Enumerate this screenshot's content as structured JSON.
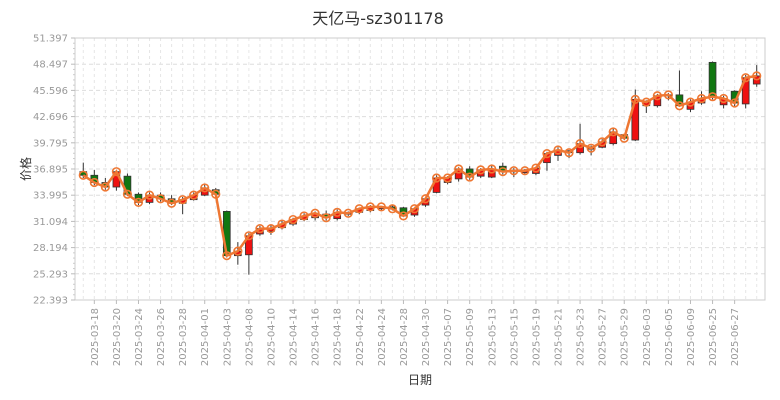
{
  "chart_data": {
    "type": "candlestick",
    "title": "天亿马-sz301178",
    "xlabel": "日期",
    "ylabel": "价格",
    "ylim": [
      22.393,
      51.397
    ],
    "y_ticks": [
      "51.397",
      "48.497",
      "45.596",
      "42.696",
      "39.795",
      "36.895",
      "33.995",
      "31.094",
      "28.194",
      "25.293",
      "22.393"
    ],
    "x_tick_labels": [
      "2025-03-18",
      "2025-03-20",
      "2025-03-24",
      "2025-03-26",
      "2025-03-28",
      "2025-04-01",
      "2025-04-03",
      "2025-04-08",
      "2025-04-10",
      "2025-04-14",
      "2025-04-16",
      "2025-04-18",
      "2025-04-22",
      "2025-04-24",
      "2025-04-28",
      "2025-04-30",
      "2025-05-07",
      "2025-05-09",
      "2025-05-13",
      "2025-05-15",
      "2025-05-19",
      "2025-05-21",
      "2025-05-23",
      "2025-05-27",
      "2025-05-29",
      "2025-06-03",
      "2025-06-05",
      "2025-06-09",
      "2025-06-25",
      "2025-06-27"
    ],
    "grid": true,
    "colors": {
      "up": "#ee1111",
      "down": "#117711",
      "close_line": "#ee7733"
    },
    "series": [
      {
        "values": [
          [
            36.6,
            36.2,
            35.9,
            37.6
          ],
          [
            36.2,
            35.4,
            35.1,
            36.8
          ],
          [
            35.4,
            34.9,
            34.6,
            35.9
          ],
          [
            34.9,
            36.6,
            34.5,
            36.8
          ],
          [
            36.1,
            34.1,
            33.9,
            36.4
          ],
          [
            34.1,
            33.2,
            32.9,
            34.3
          ],
          [
            33.2,
            34.0,
            33.0,
            34.3
          ],
          [
            34.0,
            33.6,
            33.3,
            34.3
          ],
          [
            33.6,
            33.1,
            32.9,
            34.0
          ],
          [
            33.1,
            33.5,
            31.9,
            33.8
          ],
          [
            33.5,
            34.0,
            33.4,
            34.3
          ],
          [
            34.0,
            34.8,
            33.9,
            35.2
          ],
          [
            34.6,
            34.1,
            33.8,
            34.8
          ],
          [
            32.2,
            27.3,
            27.1,
            32.3
          ],
          [
            27.3,
            27.8,
            26.3,
            28.8
          ],
          [
            27.4,
            29.5,
            25.2,
            29.8
          ],
          [
            29.7,
            30.3,
            29.5,
            30.6
          ],
          [
            30.0,
            30.3,
            29.6,
            30.7
          ],
          [
            30.4,
            30.8,
            30.2,
            31.2
          ],
          [
            30.8,
            31.3,
            30.6,
            31.5
          ],
          [
            31.3,
            31.7,
            31.1,
            32.0
          ],
          [
            31.5,
            32.0,
            31.2,
            32.2
          ],
          [
            31.9,
            31.5,
            31.2,
            32.3
          ],
          [
            31.4,
            32.1,
            31.2,
            32.4
          ],
          [
            31.9,
            32.0,
            31.7,
            32.2
          ],
          [
            32.1,
            32.5,
            31.9,
            32.6
          ],
          [
            32.3,
            32.7,
            32.1,
            32.9
          ],
          [
            32.5,
            32.7,
            32.3,
            32.8
          ],
          [
            32.7,
            32.5,
            32.3,
            32.9
          ],
          [
            32.6,
            31.7,
            31.6,
            32.7
          ],
          [
            31.8,
            32.5,
            31.6,
            32.6
          ],
          [
            32.9,
            33.6,
            32.7,
            33.7
          ],
          [
            34.3,
            35.9,
            34.2,
            36.2
          ],
          [
            35.4,
            35.9,
            35.2,
            36.1
          ],
          [
            35.8,
            36.9,
            35.5,
            37.1
          ],
          [
            36.9,
            36.0,
            35.7,
            37.2
          ],
          [
            36.1,
            36.8,
            35.9,
            37.0
          ],
          [
            36.0,
            36.9,
            35.9,
            37.3
          ],
          [
            37.2,
            36.6,
            36.3,
            37.6
          ],
          [
            36.6,
            36.7,
            36.0,
            37.0
          ],
          [
            36.5,
            36.7,
            36.3,
            36.9
          ],
          [
            36.4,
            37.0,
            36.2,
            37.1
          ],
          [
            37.6,
            38.6,
            36.7,
            38.8
          ],
          [
            38.4,
            39.0,
            37.8,
            39.3
          ],
          [
            38.9,
            38.7,
            38.1,
            39.0
          ],
          [
            38.7,
            39.7,
            38.5,
            41.9
          ],
          [
            39.1,
            39.2,
            38.4,
            39.5
          ],
          [
            39.3,
            39.9,
            39.2,
            40.2
          ],
          [
            39.7,
            41.0,
            39.5,
            41.4
          ],
          [
            40.7,
            40.3,
            40.1,
            40.6
          ],
          [
            40.1,
            44.6,
            40.0,
            45.7
          ],
          [
            43.9,
            44.3,
            43.1,
            44.5
          ],
          [
            43.9,
            45.0,
            43.7,
            45.2
          ],
          [
            45.0,
            45.1,
            44.5,
            45.3
          ],
          [
            45.1,
            43.9,
            43.8,
            47.8
          ],
          [
            43.5,
            44.3,
            43.2,
            44.6
          ],
          [
            44.2,
            44.7,
            44.0,
            45.5
          ],
          [
            48.7,
            44.9,
            44.6,
            48.8
          ],
          [
            44.0,
            44.7,
            43.6,
            45.0
          ],
          [
            45.5,
            44.2,
            43.8,
            45.6
          ],
          [
            44.1,
            47.0,
            43.6,
            47.3
          ],
          [
            46.3,
            47.2,
            46.0,
            48.4
          ]
        ]
      }
    ]
  }
}
